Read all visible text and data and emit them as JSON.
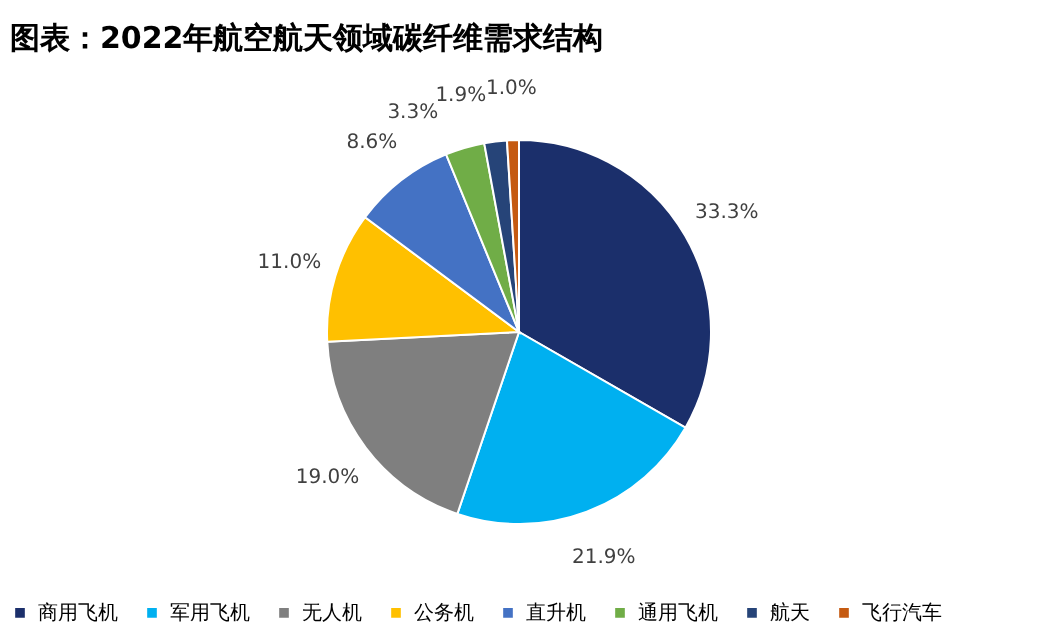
{
  "chart_data": {
    "type": "pie",
    "title": "图表：2022年航空航天领域碳纤维需求结构",
    "categories": [
      "商用飞机",
      "军用飞机",
      "无人机",
      "公务机",
      "直升机",
      "通用飞机",
      "航天",
      "飞行汽车"
    ],
    "values": [
      33.3,
      21.9,
      19.0,
      11.0,
      8.6,
      3.3,
      1.9,
      1.0
    ],
    "value_labels": [
      "33.3%",
      "21.9%",
      "19.0%",
      "11.0%",
      "8.6%",
      "3.3%",
      "1.9%",
      "1.0%"
    ],
    "colors": [
      "#1b2f6b",
      "#00b0f0",
      "#7f7f7f",
      "#ffc000",
      "#4472c4",
      "#70ad47",
      "#264478",
      "#c55a11"
    ],
    "legend": "bottom"
  }
}
